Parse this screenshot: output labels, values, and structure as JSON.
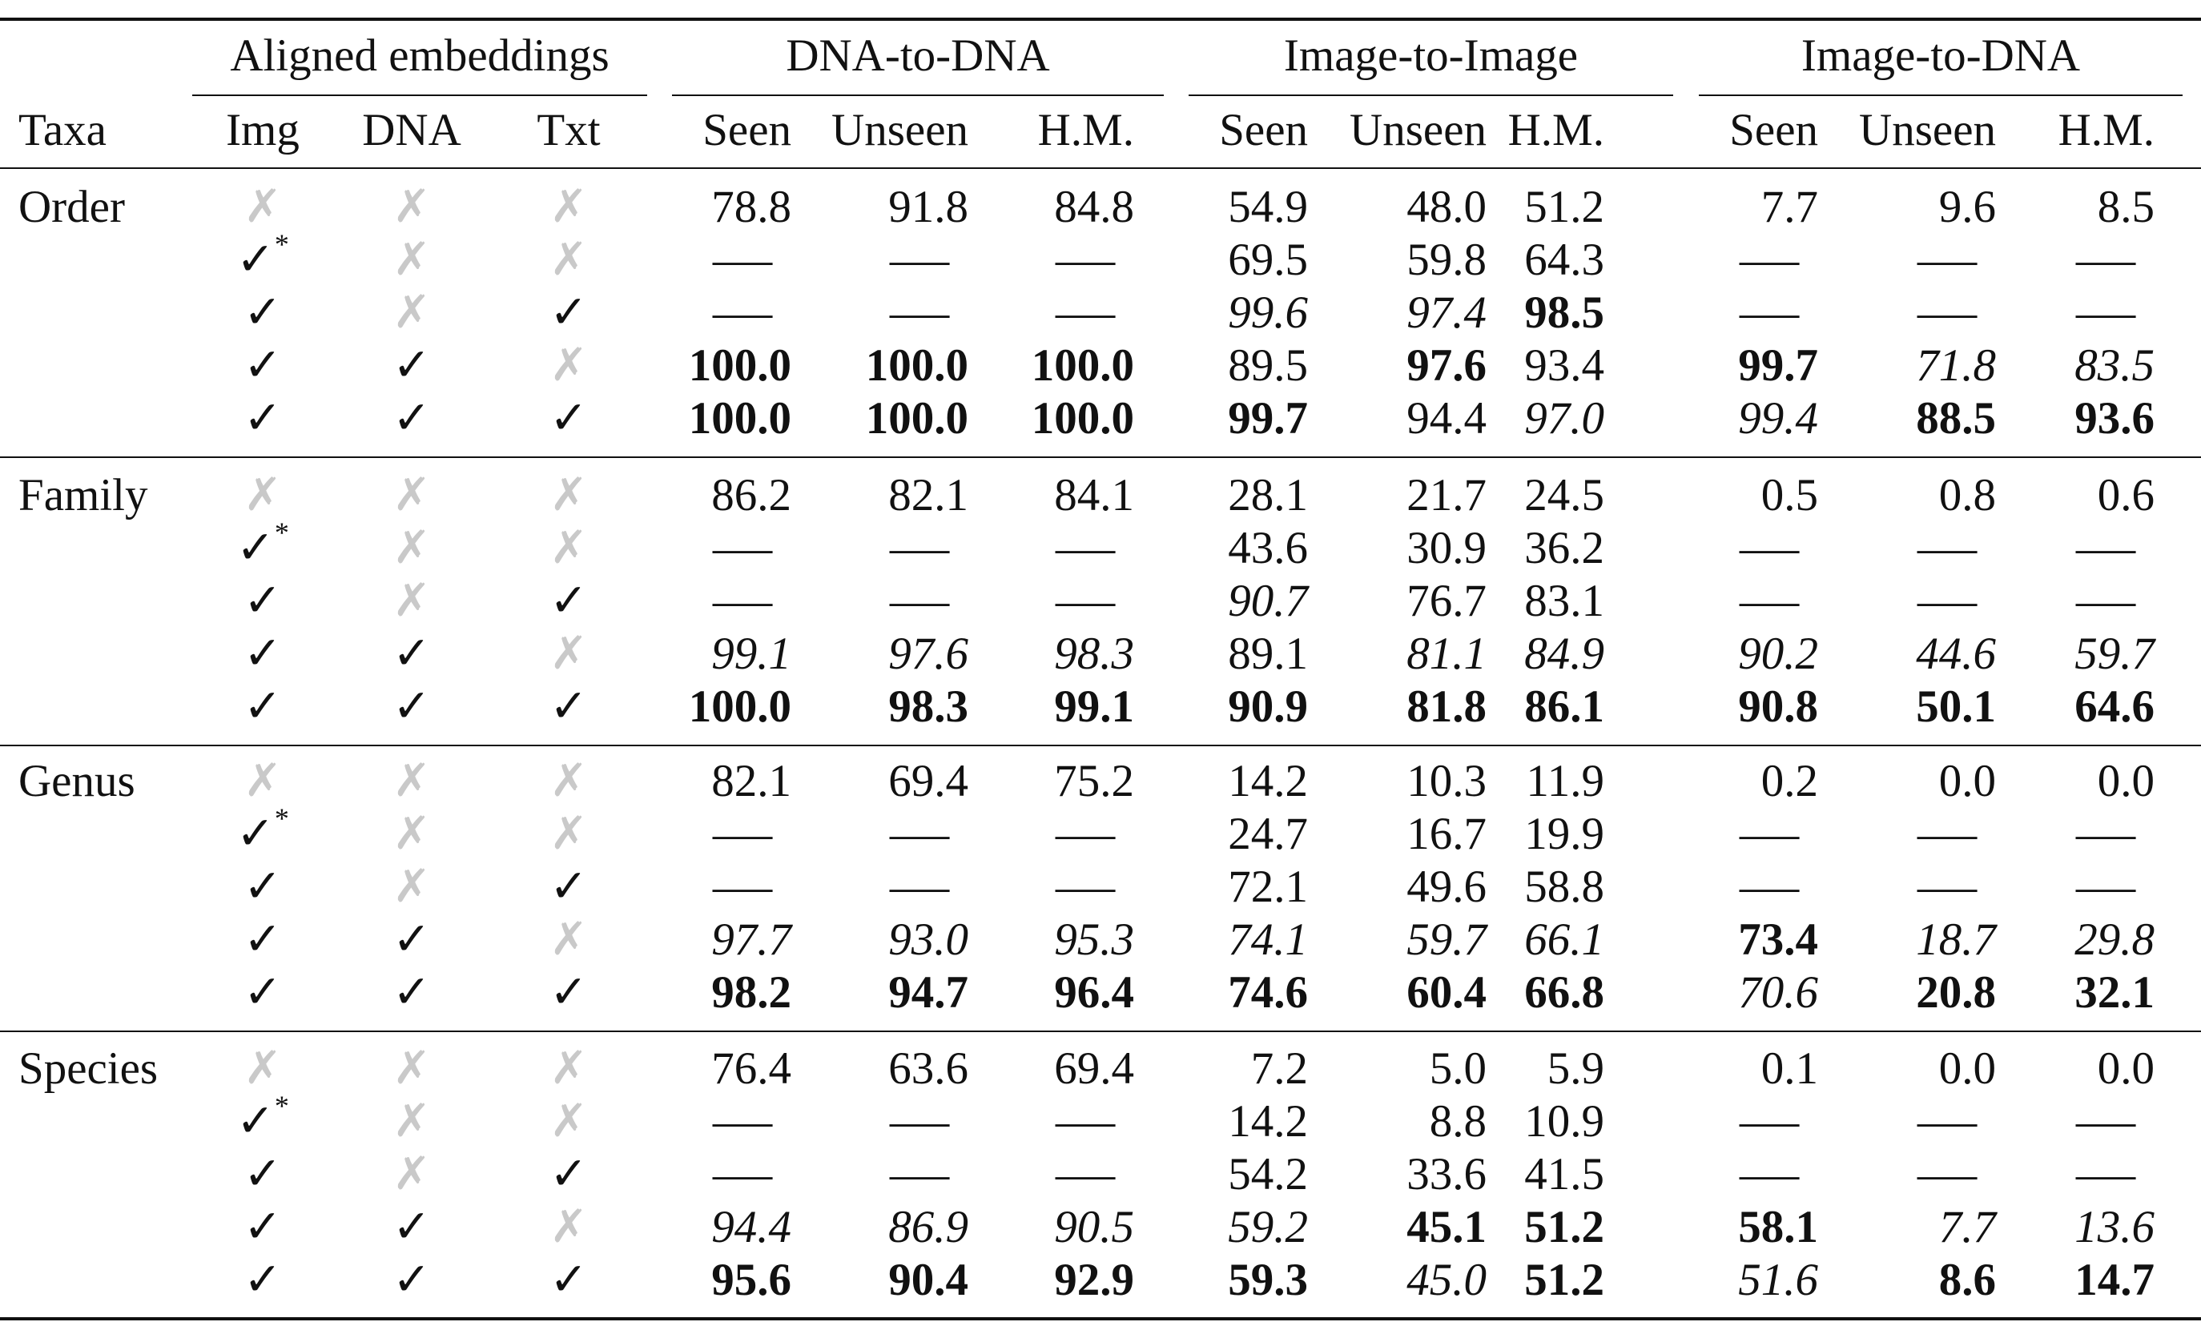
{
  "header": {
    "taxa": "Taxa",
    "groups": [
      "Aligned embeddings",
      "DNA-to-DNA",
      "Image-to-Image",
      "Image-to-DNA"
    ],
    "aligned_cols": [
      "Img",
      "DNA",
      "Txt"
    ],
    "metric_cols": [
      "Seen",
      "Unseen",
      "H.M."
    ]
  },
  "symbols": {
    "check": "✓",
    "cross": "✗",
    "star": "*",
    "dash": "—",
    "cross_color": "#c9c9c9"
  },
  "alignment_patterns": [
    [
      "x",
      "x",
      "x"
    ],
    [
      "c*",
      "x",
      "x"
    ],
    [
      "c",
      "x",
      "c"
    ],
    [
      "c",
      "c",
      "x"
    ],
    [
      "c",
      "c",
      "c"
    ]
  ],
  "groups": [
    {
      "taxa": "Order",
      "rows": [
        [
          [
            "78.8",
            ""
          ],
          [
            "91.8",
            ""
          ],
          [
            "84.8",
            ""
          ],
          [
            "54.9",
            ""
          ],
          [
            "48.0",
            ""
          ],
          [
            "51.2",
            ""
          ],
          [
            "7.7",
            ""
          ],
          [
            "9.6",
            ""
          ],
          [
            "8.5",
            ""
          ]
        ],
        [
          [
            "—",
            ""
          ],
          [
            "—",
            ""
          ],
          [
            "—",
            ""
          ],
          [
            "69.5",
            ""
          ],
          [
            "59.8",
            ""
          ],
          [
            "64.3",
            ""
          ],
          [
            "—",
            ""
          ],
          [
            "—",
            ""
          ],
          [
            "—",
            ""
          ]
        ],
        [
          [
            "—",
            ""
          ],
          [
            "—",
            ""
          ],
          [
            "—",
            ""
          ],
          [
            "99.6",
            "i"
          ],
          [
            "97.4",
            "i"
          ],
          [
            "98.5",
            "b"
          ],
          [
            "—",
            ""
          ],
          [
            "—",
            ""
          ],
          [
            "—",
            ""
          ]
        ],
        [
          [
            "100.0",
            "b"
          ],
          [
            "100.0",
            "b"
          ],
          [
            "100.0",
            "b"
          ],
          [
            "89.5",
            ""
          ],
          [
            "97.6",
            "b"
          ],
          [
            "93.4",
            ""
          ],
          [
            "99.7",
            "b"
          ],
          [
            "71.8",
            "i"
          ],
          [
            "83.5",
            "i"
          ]
        ],
        [
          [
            "100.0",
            "b"
          ],
          [
            "100.0",
            "b"
          ],
          [
            "100.0",
            "b"
          ],
          [
            "99.7",
            "b"
          ],
          [
            "94.4",
            ""
          ],
          [
            "97.0",
            "i"
          ],
          [
            "99.4",
            "i"
          ],
          [
            "88.5",
            "b"
          ],
          [
            "93.6",
            "b"
          ]
        ]
      ]
    },
    {
      "taxa": "Family",
      "rows": [
        [
          [
            "86.2",
            ""
          ],
          [
            "82.1",
            ""
          ],
          [
            "84.1",
            ""
          ],
          [
            "28.1",
            ""
          ],
          [
            "21.7",
            ""
          ],
          [
            "24.5",
            ""
          ],
          [
            "0.5",
            ""
          ],
          [
            "0.8",
            ""
          ],
          [
            "0.6",
            ""
          ]
        ],
        [
          [
            "—",
            ""
          ],
          [
            "—",
            ""
          ],
          [
            "—",
            ""
          ],
          [
            "43.6",
            ""
          ],
          [
            "30.9",
            ""
          ],
          [
            "36.2",
            ""
          ],
          [
            "—",
            ""
          ],
          [
            "—",
            ""
          ],
          [
            "—",
            ""
          ]
        ],
        [
          [
            "—",
            ""
          ],
          [
            "—",
            ""
          ],
          [
            "—",
            ""
          ],
          [
            "90.7",
            "i"
          ],
          [
            "76.7",
            ""
          ],
          [
            "83.1",
            ""
          ],
          [
            "—",
            ""
          ],
          [
            "—",
            ""
          ],
          [
            "—",
            ""
          ]
        ],
        [
          [
            "99.1",
            "i"
          ],
          [
            "97.6",
            "i"
          ],
          [
            "98.3",
            "i"
          ],
          [
            "89.1",
            ""
          ],
          [
            "81.1",
            "i"
          ],
          [
            "84.9",
            "i"
          ],
          [
            "90.2",
            "i"
          ],
          [
            "44.6",
            "i"
          ],
          [
            "59.7",
            "i"
          ]
        ],
        [
          [
            "100.0",
            "b"
          ],
          [
            "98.3",
            "b"
          ],
          [
            "99.1",
            "b"
          ],
          [
            "90.9",
            "b"
          ],
          [
            "81.8",
            "b"
          ],
          [
            "86.1",
            "b"
          ],
          [
            "90.8",
            "b"
          ],
          [
            "50.1",
            "b"
          ],
          [
            "64.6",
            "b"
          ]
        ]
      ]
    },
    {
      "taxa": "Genus",
      "rows": [
        [
          [
            "82.1",
            ""
          ],
          [
            "69.4",
            ""
          ],
          [
            "75.2",
            ""
          ],
          [
            "14.2",
            ""
          ],
          [
            "10.3",
            ""
          ],
          [
            "11.9",
            ""
          ],
          [
            "0.2",
            ""
          ],
          [
            "0.0",
            ""
          ],
          [
            "0.0",
            ""
          ]
        ],
        [
          [
            "—",
            ""
          ],
          [
            "—",
            ""
          ],
          [
            "—",
            ""
          ],
          [
            "24.7",
            ""
          ],
          [
            "16.7",
            ""
          ],
          [
            "19.9",
            ""
          ],
          [
            "—",
            ""
          ],
          [
            "—",
            ""
          ],
          [
            "—",
            ""
          ]
        ],
        [
          [
            "—",
            ""
          ],
          [
            "—",
            ""
          ],
          [
            "—",
            ""
          ],
          [
            "72.1",
            ""
          ],
          [
            "49.6",
            ""
          ],
          [
            "58.8",
            ""
          ],
          [
            "—",
            ""
          ],
          [
            "—",
            ""
          ],
          [
            "—",
            ""
          ]
        ],
        [
          [
            "97.7",
            "i"
          ],
          [
            "93.0",
            "i"
          ],
          [
            "95.3",
            "i"
          ],
          [
            "74.1",
            "i"
          ],
          [
            "59.7",
            "i"
          ],
          [
            "66.1",
            "i"
          ],
          [
            "73.4",
            "b"
          ],
          [
            "18.7",
            "i"
          ],
          [
            "29.8",
            "i"
          ]
        ],
        [
          [
            "98.2",
            "b"
          ],
          [
            "94.7",
            "b"
          ],
          [
            "96.4",
            "b"
          ],
          [
            "74.6",
            "b"
          ],
          [
            "60.4",
            "b"
          ],
          [
            "66.8",
            "b"
          ],
          [
            "70.6",
            "i"
          ],
          [
            "20.8",
            "b"
          ],
          [
            "32.1",
            "b"
          ]
        ]
      ]
    },
    {
      "taxa": "Species",
      "rows": [
        [
          [
            "76.4",
            ""
          ],
          [
            "63.6",
            ""
          ],
          [
            "69.4",
            ""
          ],
          [
            "7.2",
            ""
          ],
          [
            "5.0",
            ""
          ],
          [
            "5.9",
            ""
          ],
          [
            "0.1",
            ""
          ],
          [
            "0.0",
            ""
          ],
          [
            "0.0",
            ""
          ]
        ],
        [
          [
            "—",
            ""
          ],
          [
            "—",
            ""
          ],
          [
            "—",
            ""
          ],
          [
            "14.2",
            ""
          ],
          [
            "8.8",
            ""
          ],
          [
            "10.9",
            ""
          ],
          [
            "—",
            ""
          ],
          [
            "—",
            ""
          ],
          [
            "—",
            ""
          ]
        ],
        [
          [
            "—",
            ""
          ],
          [
            "—",
            ""
          ],
          [
            "—",
            ""
          ],
          [
            "54.2",
            ""
          ],
          [
            "33.6",
            ""
          ],
          [
            "41.5",
            ""
          ],
          [
            "—",
            ""
          ],
          [
            "—",
            ""
          ],
          [
            "—",
            ""
          ]
        ],
        [
          [
            "94.4",
            "i"
          ],
          [
            "86.9",
            "i"
          ],
          [
            "90.5",
            "i"
          ],
          [
            "59.2",
            "i"
          ],
          [
            "45.1",
            "b"
          ],
          [
            "51.2",
            "b"
          ],
          [
            "58.1",
            "b"
          ],
          [
            "7.7",
            "i"
          ],
          [
            "13.6",
            "i"
          ]
        ],
        [
          [
            "95.6",
            "b"
          ],
          [
            "90.4",
            "b"
          ],
          [
            "92.9",
            "b"
          ],
          [
            "59.3",
            "b"
          ],
          [
            "45.0",
            "i"
          ],
          [
            "51.2",
            "b"
          ],
          [
            "51.6",
            "i"
          ],
          [
            "8.6",
            "b"
          ],
          [
            "14.7",
            "b"
          ]
        ]
      ]
    }
  ]
}
